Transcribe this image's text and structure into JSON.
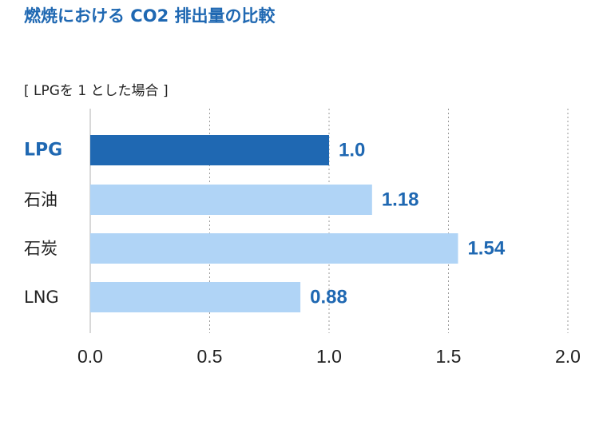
{
  "title": "燃焼における CO2 排出量の比較",
  "subtitle": "[ LPGを 1 とした場合 ]",
  "chart_data": {
    "type": "bar",
    "orientation": "horizontal",
    "categories": [
      "LPG",
      "石油",
      "石炭",
      "LNG"
    ],
    "values": [
      1.0,
      1.18,
      1.54,
      0.88
    ],
    "value_labels": [
      "1.0",
      "1.18",
      "1.54",
      "0.88"
    ],
    "highlight_index": 0,
    "xlim": [
      0,
      2.0
    ],
    "xticks": [
      0.0,
      0.5,
      1.0,
      1.5,
      2.0
    ],
    "xtick_labels": [
      "0.0",
      "0.5",
      "1.0",
      "1.5",
      "2.0"
    ],
    "grid": true,
    "colors": {
      "highlight_bar": "#1f68b2",
      "bar": "#b0d4f6",
      "value_label": "#1f68b2",
      "highlight_category": "#1f68b2",
      "category": "#222222",
      "grid": "#999999",
      "axis": "#cccccc",
      "tick_label": "#222222"
    }
  }
}
